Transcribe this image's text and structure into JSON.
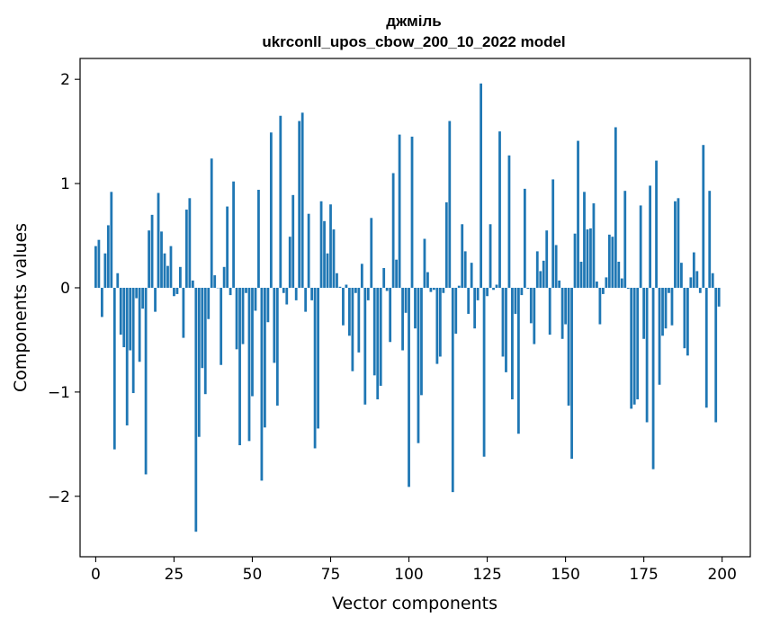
{
  "chart_data": {
    "type": "bar",
    "title": "джміль",
    "subtitle": "ukrconll_upos_cbow_200_10_2022 model",
    "xlabel": "Vector components",
    "ylabel": "Components values",
    "xlim": [
      -5,
      209
    ],
    "ylim": [
      -2.58,
      2.2
    ],
    "xticks": [
      0,
      25,
      50,
      75,
      100,
      125,
      150,
      175,
      200
    ],
    "xtick_labels": [
      "0",
      "25",
      "50",
      "75",
      "100",
      "125",
      "150",
      "175",
      "200"
    ],
    "yticks": [
      -2,
      -1,
      0,
      1,
      2
    ],
    "ytick_labels": [
      "−2",
      "−1",
      "0",
      "1",
      "2"
    ],
    "grid": false,
    "legend": "none",
    "bar_color": "#1f77b4",
    "x": [
      0,
      1,
      2,
      3,
      4,
      5,
      6,
      7,
      8,
      9,
      10,
      11,
      12,
      13,
      14,
      15,
      16,
      17,
      18,
      19,
      20,
      21,
      22,
      23,
      24,
      25,
      26,
      27,
      28,
      29,
      30,
      31,
      32,
      33,
      34,
      35,
      36,
      37,
      38,
      39,
      40,
      41,
      42,
      43,
      44,
      45,
      46,
      47,
      48,
      49,
      50,
      51,
      52,
      53,
      54,
      55,
      56,
      57,
      58,
      59,
      60,
      61,
      62,
      63,
      64,
      65,
      66,
      67,
      68,
      69,
      70,
      71,
      72,
      73,
      74,
      75,
      76,
      77,
      78,
      79,
      80,
      81,
      82,
      83,
      84,
      85,
      86,
      87,
      88,
      89,
      90,
      91,
      92,
      93,
      94,
      95,
      96,
      97,
      98,
      99,
      100,
      101,
      102,
      103,
      104,
      105,
      106,
      107,
      108,
      109,
      110,
      111,
      112,
      113,
      114,
      115,
      116,
      117,
      118,
      119,
      120,
      121,
      122,
      123,
      124,
      125,
      126,
      127,
      128,
      129,
      130,
      131,
      132,
      133,
      134,
      135,
      136,
      137,
      138,
      139,
      140,
      141,
      142,
      143,
      144,
      145,
      146,
      147,
      148,
      149,
      150,
      151,
      152,
      153,
      154,
      155,
      156,
      157,
      158,
      159,
      160,
      161,
      162,
      163,
      164,
      165,
      166,
      167,
      168,
      169,
      170,
      171,
      172,
      173,
      174,
      175,
      176,
      177,
      178,
      179,
      180,
      181,
      182,
      183,
      184,
      185,
      186,
      187,
      188,
      189,
      190,
      191,
      192,
      193,
      194,
      195,
      196,
      197,
      198,
      199
    ],
    "values": [
      0.4,
      0.46,
      -0.28,
      0.33,
      0.6,
      0.92,
      -1.55,
      0.14,
      -0.45,
      -0.57,
      -1.32,
      -0.6,
      -1.01,
      -0.1,
      -0.71,
      -0.2,
      -1.79,
      0.55,
      0.7,
      -0.23,
      0.91,
      0.54,
      0.33,
      0.21,
      0.4,
      -0.08,
      -0.06,
      0.2,
      -0.48,
      0.75,
      0.86,
      0.07,
      -2.34,
      -1.43,
      -0.77,
      -1.02,
      -0.3,
      1.24,
      0.12,
      0.0,
      -0.74,
      0.2,
      0.78,
      -0.07,
      1.02,
      -0.59,
      -1.51,
      -0.54,
      -0.05,
      -1.47,
      -1.04,
      -0.22,
      0.94,
      -1.85,
      -1.34,
      -0.33,
      1.49,
      -0.72,
      -1.13,
      1.65,
      -0.05,
      -0.16,
      0.49,
      0.89,
      -0.12,
      1.6,
      1.68,
      -0.23,
      0.71,
      -0.12,
      -1.54,
      -1.35,
      0.83,
      0.64,
      0.33,
      0.8,
      0.56,
      0.14,
      0.01,
      -0.36,
      0.03,
      -0.46,
      -0.8,
      -0.05,
      -0.62,
      0.23,
      -1.12,
      -0.12,
      0.67,
      -0.84,
      -1.07,
      -0.94,
      0.19,
      -0.03,
      -0.52,
      1.1,
      0.27,
      1.47,
      -0.6,
      -0.24,
      -1.91,
      1.45,
      -0.39,
      -1.49,
      -1.03,
      0.47,
      0.15,
      -0.04,
      -0.02,
      -0.73,
      -0.66,
      -0.05,
      0.82,
      1.6,
      -1.96,
      -0.44,
      0.02,
      0.61,
      0.35,
      -0.25,
      0.24,
      -0.39,
      -0.12,
      1.96,
      -1.62,
      -0.08,
      0.61,
      -0.02,
      0.03,
      1.5,
      -0.66,
      -0.81,
      1.27,
      -1.07,
      -0.25,
      -1.4,
      -0.07,
      0.95,
      -0.01,
      -0.34,
      -0.54,
      0.35,
      0.16,
      0.26,
      0.55,
      -0.45,
      1.04,
      0.41,
      0.07,
      -0.49,
      -0.35,
      -1.13,
      -1.64,
      0.52,
      1.41,
      0.25,
      0.92,
      0.56,
      0.57,
      0.81,
      0.06,
      -0.35,
      -0.06,
      0.1,
      0.51,
      0.49,
      1.54,
      0.25,
      0.09,
      0.93,
      -0.01,
      -1.16,
      -1.12,
      -1.07,
      0.79,
      -0.49,
      -1.29,
      0.98,
      -1.74,
      1.22,
      -0.93,
      -0.46,
      -0.39,
      -0.05,
      -0.36,
      0.83,
      0.86,
      0.24,
      -0.58,
      -0.65,
      0.1,
      0.34,
      0.16,
      -0.05,
      1.37,
      -1.15,
      0.93,
      0.14,
      -1.29,
      -0.18
    ]
  }
}
